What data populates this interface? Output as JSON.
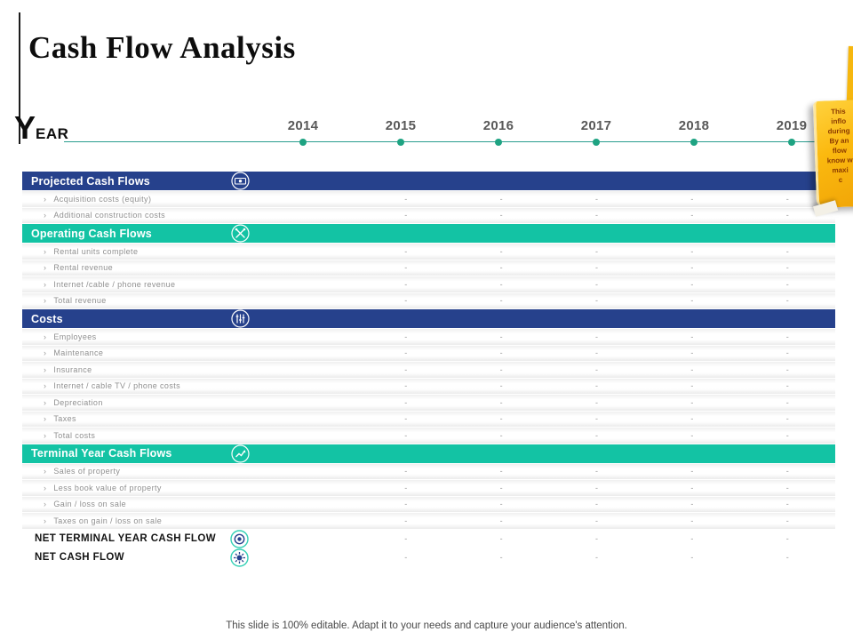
{
  "slide": {
    "title": "Cash Flow Analysis",
    "footer": "This slide is 100% editable. Adapt it to your needs and capture your audience's attention."
  },
  "timeline": {
    "label_big": "Y",
    "label_small": "EAR",
    "years": [
      "2014",
      "2015",
      "2016",
      "2017",
      "2018",
      "2019"
    ]
  },
  "table": {
    "bullet": "›",
    "dash": "-",
    "sections": [
      {
        "title": "Projected Cash Flows",
        "color": "blue",
        "icon": "banknote-icon",
        "rows": [
          "Acquisition costs (equity)",
          "Additional construction costs"
        ]
      },
      {
        "title": "Operating Cash Flows",
        "color": "teal",
        "icon": "crossed-tools-icon",
        "rows": [
          "Rental units complete",
          "Rental revenue",
          "Internet /cable / phone revenue",
          "Total revenue"
        ]
      },
      {
        "title": "Costs",
        "color": "blue",
        "icon": "sliders-icon",
        "rows": [
          "Employees",
          "Maintenance",
          "Insurance",
          "Internet / cable TV / phone costs",
          "Depreciation",
          "Taxes",
          "Total costs"
        ]
      },
      {
        "title": "Terminal Year Cash Flows",
        "color": "teal",
        "icon": "trend-chart-icon",
        "rows": [
          "Sales of property",
          "Less book value of property",
          "Gain / loss on sale",
          "Taxes on gain / loss on sale"
        ]
      }
    ],
    "summary_rows": [
      {
        "label": "NET TERMINAL YEAR CASH FLOW",
        "icon": "target-icon"
      },
      {
        "label": "NET CASH FLOW",
        "icon": "sun-gear-icon"
      }
    ]
  },
  "note": {
    "lines": [
      "This",
      "inflo",
      "during",
      "By an",
      "flow",
      "know w",
      "maxi",
      "c"
    ]
  },
  "colors": {
    "header_blue": "#26418c",
    "header_teal": "#13c3a4",
    "timeline_dot": "#1ea382",
    "note_bg": "#fbb90f",
    "note_text": "#8b3a00"
  }
}
